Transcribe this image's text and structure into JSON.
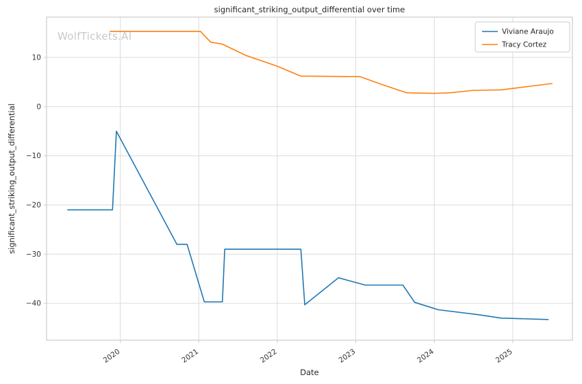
{
  "chart_data": {
    "type": "line",
    "title": "significant_striking_output_differential over time",
    "xlabel": "Date",
    "ylabel": "significant_striking_output_differential",
    "watermark": "WolfTickets.AI",
    "xlim": [
      2019.06,
      2025.76
    ],
    "ylim": [
      -47.5,
      18.2
    ],
    "x_ticks": [
      2020,
      2021,
      2022,
      2023,
      2024,
      2025
    ],
    "y_ticks": [
      -40,
      -30,
      -20,
      -10,
      0,
      10
    ],
    "grid": true,
    "legend_position": "upper right",
    "series": [
      {
        "name": "Viviane Araujo",
        "color": "#1f77b4",
        "points": [
          [
            2019.33,
            -21
          ],
          [
            2019.9,
            -21
          ],
          [
            2019.95,
            -5
          ],
          [
            2020.72,
            -28
          ],
          [
            2020.85,
            -28
          ],
          [
            2021.07,
            -39.7
          ],
          [
            2021.3,
            -39.7
          ],
          [
            2021.33,
            -29
          ],
          [
            2022.3,
            -29
          ],
          [
            2022.35,
            -40.3
          ],
          [
            2022.78,
            -34.8
          ],
          [
            2023.12,
            -36.3
          ],
          [
            2023.6,
            -36.3
          ],
          [
            2023.75,
            -39.8
          ],
          [
            2024.05,
            -41.3
          ],
          [
            2024.55,
            -42.3
          ],
          [
            2024.85,
            -43.0
          ],
          [
            2025.45,
            -43.3
          ]
        ]
      },
      {
        "name": "Tracy Cortez",
        "color": "#ff7f0e",
        "points": [
          [
            2019.87,
            15.3
          ],
          [
            2021.02,
            15.3
          ],
          [
            2021.15,
            13.1
          ],
          [
            2021.3,
            12.7
          ],
          [
            2021.6,
            10.4
          ],
          [
            2022.0,
            8.2
          ],
          [
            2022.3,
            6.2
          ],
          [
            2023.05,
            6.1
          ],
          [
            2023.35,
            4.4
          ],
          [
            2023.65,
            2.8
          ],
          [
            2024.0,
            2.7
          ],
          [
            2024.2,
            2.8
          ],
          [
            2024.5,
            3.3
          ],
          [
            2024.85,
            3.4
          ],
          [
            2025.5,
            4.7
          ]
        ]
      }
    ],
    "colors": {
      "grid": "#dcdcdc",
      "frame": "#cccccc",
      "text": "#262626",
      "tick_text": "#333333",
      "watermark": "#c8c8c8",
      "background": "#ffffff",
      "legend_border": "#cccccc"
    }
  }
}
